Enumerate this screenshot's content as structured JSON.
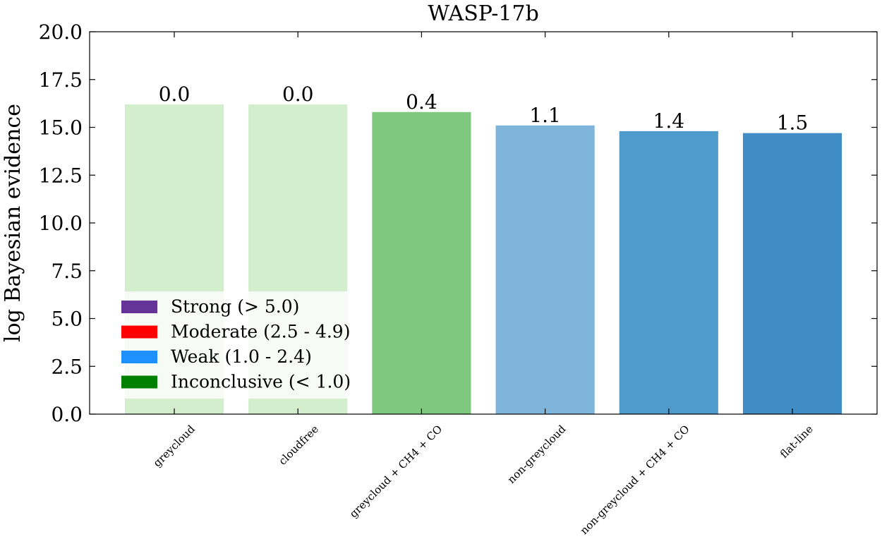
{
  "chart_data": {
    "type": "bar",
    "title": "WASP-17b",
    "xlabel": "",
    "ylabel": "log Bayesian evidence",
    "ylim": [
      0,
      20
    ],
    "yticks": [
      "0.0",
      "2.5",
      "5.0",
      "7.5",
      "10.0",
      "12.5",
      "15.0",
      "17.5",
      "20.0"
    ],
    "categories": [
      "greycloud",
      "cloudfree",
      "greycloud + CH4 + CO",
      "non-greycloud",
      "non-greycloud + CH4 + CO",
      "flat-line"
    ],
    "values": [
      16.2,
      16.2,
      15.8,
      15.1,
      14.8,
      14.7
    ],
    "bar_labels": [
      "0.0",
      "0.0",
      "0.4",
      "1.1",
      "1.4",
      "1.5"
    ],
    "bar_colors": [
      "#d3eecd",
      "#d3eecd",
      "#7fc97f",
      "#7fb5da",
      "#4f9ccc",
      "#3f8dc4"
    ],
    "grid": false,
    "legend": {
      "placement": "lower-left",
      "entries": [
        {
          "label": "Strong (> 5.0)",
          "color": "#663399"
        },
        {
          "label": "Moderate (2.5 - 4.9)",
          "color": "#ff0000"
        },
        {
          "label": "Weak (1.0 - 2.4)",
          "color": "#1e90ff"
        },
        {
          "label": "Inconclusive (< 1.0)",
          "color": "#008000"
        }
      ]
    }
  }
}
